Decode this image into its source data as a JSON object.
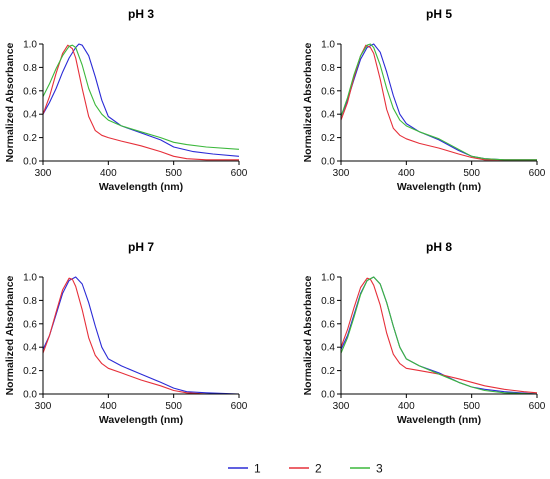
{
  "colors": {
    "1": "#2b2bd6",
    "2": "#e6303a",
    "3": "#3cb83c"
  },
  "legend": [
    {
      "label": "1",
      "color": "#2b2bd6"
    },
    {
      "label": "2",
      "color": "#e6303a"
    },
    {
      "label": "3",
      "color": "#3cb83c"
    }
  ],
  "chart_data": [
    {
      "type": "line",
      "title": "pH 3",
      "xlabel": "Wavelength (nm)",
      "ylabel": "Normalized Absorbance",
      "xlim": [
        300,
        600
      ],
      "ylim": [
        0,
        1.0
      ],
      "xticks": [
        300,
        400,
        500,
        600
      ],
      "yticks": [
        0.0,
        0.2,
        0.4,
        0.6,
        0.8,
        1.0
      ],
      "series": [
        {
          "name": "1",
          "color": "#2b2bd6",
          "x": [
            300,
            310,
            320,
            330,
            340,
            350,
            355,
            360,
            370,
            380,
            390,
            400,
            420,
            450,
            480,
            500,
            530,
            560,
            600
          ],
          "y": [
            0.4,
            0.5,
            0.62,
            0.76,
            0.88,
            0.97,
            1.0,
            0.99,
            0.9,
            0.72,
            0.52,
            0.38,
            0.3,
            0.24,
            0.18,
            0.12,
            0.08,
            0.06,
            0.04
          ]
        },
        {
          "name": "2",
          "color": "#e6303a",
          "x": [
            300,
            310,
            320,
            330,
            338,
            345,
            350,
            360,
            370,
            380,
            390,
            400,
            420,
            450,
            480,
            500,
            520,
            550,
            600
          ],
          "y": [
            0.4,
            0.55,
            0.75,
            0.92,
            0.99,
            0.96,
            0.88,
            0.62,
            0.38,
            0.26,
            0.22,
            0.2,
            0.17,
            0.13,
            0.08,
            0.04,
            0.02,
            0.01,
            0.01
          ]
        },
        {
          "name": "3",
          "color": "#3cb83c",
          "x": [
            300,
            310,
            320,
            330,
            340,
            345,
            350,
            360,
            370,
            380,
            390,
            400,
            420,
            450,
            480,
            500,
            520,
            550,
            600
          ],
          "y": [
            0.55,
            0.66,
            0.79,
            0.9,
            0.98,
            0.99,
            0.97,
            0.82,
            0.62,
            0.48,
            0.4,
            0.35,
            0.3,
            0.25,
            0.2,
            0.16,
            0.14,
            0.12,
            0.1
          ]
        }
      ]
    },
    {
      "type": "line",
      "title": "pH 5",
      "xlabel": "Wavelength (nm)",
      "ylabel": "Normalized Absorbance",
      "xlim": [
        300,
        600
      ],
      "ylim": [
        0,
        1.0
      ],
      "xticks": [
        300,
        400,
        500,
        600
      ],
      "yticks": [
        0.0,
        0.2,
        0.4,
        0.6,
        0.8,
        1.0
      ],
      "series": [
        {
          "name": "1",
          "color": "#2b2bd6",
          "x": [
            300,
            310,
            320,
            330,
            340,
            350,
            360,
            370,
            380,
            390,
            400,
            420,
            450,
            480,
            500,
            520,
            550,
            600
          ],
          "y": [
            0.38,
            0.52,
            0.7,
            0.87,
            0.97,
            1.0,
            0.93,
            0.76,
            0.56,
            0.4,
            0.32,
            0.25,
            0.18,
            0.09,
            0.04,
            0.02,
            0.01,
            0.01
          ]
        },
        {
          "name": "2",
          "color": "#e6303a",
          "x": [
            300,
            310,
            320,
            330,
            338,
            345,
            350,
            360,
            370,
            380,
            390,
            400,
            420,
            450,
            480,
            500,
            520,
            550,
            600
          ],
          "y": [
            0.35,
            0.5,
            0.72,
            0.9,
            0.99,
            0.97,
            0.92,
            0.7,
            0.44,
            0.28,
            0.22,
            0.19,
            0.15,
            0.11,
            0.06,
            0.03,
            0.01,
            0.01,
            0.01
          ]
        },
        {
          "name": "3",
          "color": "#3cb83c",
          "x": [
            300,
            310,
            320,
            330,
            340,
            345,
            350,
            360,
            370,
            380,
            390,
            400,
            420,
            450,
            480,
            500,
            520,
            550,
            600
          ],
          "y": [
            0.38,
            0.54,
            0.74,
            0.9,
            0.99,
            1.0,
            0.97,
            0.82,
            0.62,
            0.45,
            0.35,
            0.3,
            0.25,
            0.19,
            0.1,
            0.04,
            0.02,
            0.01,
            0.01
          ]
        }
      ]
    },
    {
      "type": "line",
      "title": "pH 7",
      "xlabel": "Wavelength (nm)",
      "ylabel": "Normalized Absorbance",
      "xlim": [
        300,
        600
      ],
      "ylim": [
        0,
        1.0
      ],
      "xticks": [
        300,
        400,
        500,
        600
      ],
      "yticks": [
        0.0,
        0.2,
        0.4,
        0.6,
        0.8,
        1.0
      ],
      "series": [
        {
          "name": "1",
          "color": "#2b2bd6",
          "x": [
            300,
            310,
            320,
            330,
            340,
            350,
            360,
            370,
            380,
            390,
            400,
            420,
            450,
            480,
            500,
            520,
            550,
            600
          ],
          "y": [
            0.38,
            0.5,
            0.68,
            0.86,
            0.97,
            1.0,
            0.94,
            0.78,
            0.58,
            0.4,
            0.3,
            0.24,
            0.17,
            0.1,
            0.05,
            0.02,
            0.01,
            0.0
          ]
        },
        {
          "name": "2",
          "color": "#e6303a",
          "x": [
            300,
            310,
            320,
            330,
            340,
            345,
            350,
            360,
            370,
            380,
            390,
            400,
            420,
            450,
            480,
            500,
            520,
            550,
            600
          ],
          "y": [
            0.35,
            0.5,
            0.7,
            0.89,
            0.99,
            0.98,
            0.92,
            0.72,
            0.48,
            0.33,
            0.26,
            0.22,
            0.18,
            0.12,
            0.07,
            0.03,
            0.01,
            0.0,
            0.0
          ]
        }
      ]
    },
    {
      "type": "line",
      "title": "pH 8",
      "xlabel": "Wavelength (nm)",
      "ylabel": "Normalized Absorbance",
      "xlim": [
        300,
        600
      ],
      "ylim": [
        0,
        1.0
      ],
      "xticks": [
        300,
        400,
        500,
        600
      ],
      "yticks": [
        0.0,
        0.2,
        0.4,
        0.6,
        0.8,
        1.0
      ],
      "series": [
        {
          "name": "1",
          "color": "#2b2bd6",
          "x": [
            300,
            310,
            320,
            330,
            340,
            350,
            360,
            370,
            380,
            390,
            400,
            420,
            450,
            480,
            500,
            520,
            550,
            600
          ],
          "y": [
            0.38,
            0.5,
            0.68,
            0.86,
            0.97,
            1.0,
            0.94,
            0.78,
            0.58,
            0.4,
            0.3,
            0.24,
            0.18,
            0.1,
            0.06,
            0.04,
            0.02,
            0.0
          ]
        },
        {
          "name": "2",
          "color": "#e6303a",
          "x": [
            300,
            310,
            320,
            330,
            340,
            345,
            350,
            360,
            370,
            380,
            390,
            400,
            420,
            450,
            480,
            500,
            520,
            550,
            580,
            600
          ],
          "y": [
            0.4,
            0.55,
            0.74,
            0.91,
            0.99,
            0.98,
            0.93,
            0.76,
            0.52,
            0.34,
            0.26,
            0.22,
            0.2,
            0.17,
            0.13,
            0.1,
            0.07,
            0.04,
            0.02,
            0.01
          ]
        },
        {
          "name": "3",
          "color": "#3cb83c",
          "x": [
            300,
            310,
            320,
            330,
            340,
            350,
            360,
            370,
            380,
            390,
            400,
            420,
            450,
            480,
            500,
            520,
            550,
            600
          ],
          "y": [
            0.35,
            0.48,
            0.66,
            0.85,
            0.97,
            1.0,
            0.94,
            0.78,
            0.58,
            0.4,
            0.3,
            0.24,
            0.17,
            0.1,
            0.06,
            0.03,
            0.01,
            0.0
          ]
        }
      ]
    }
  ]
}
